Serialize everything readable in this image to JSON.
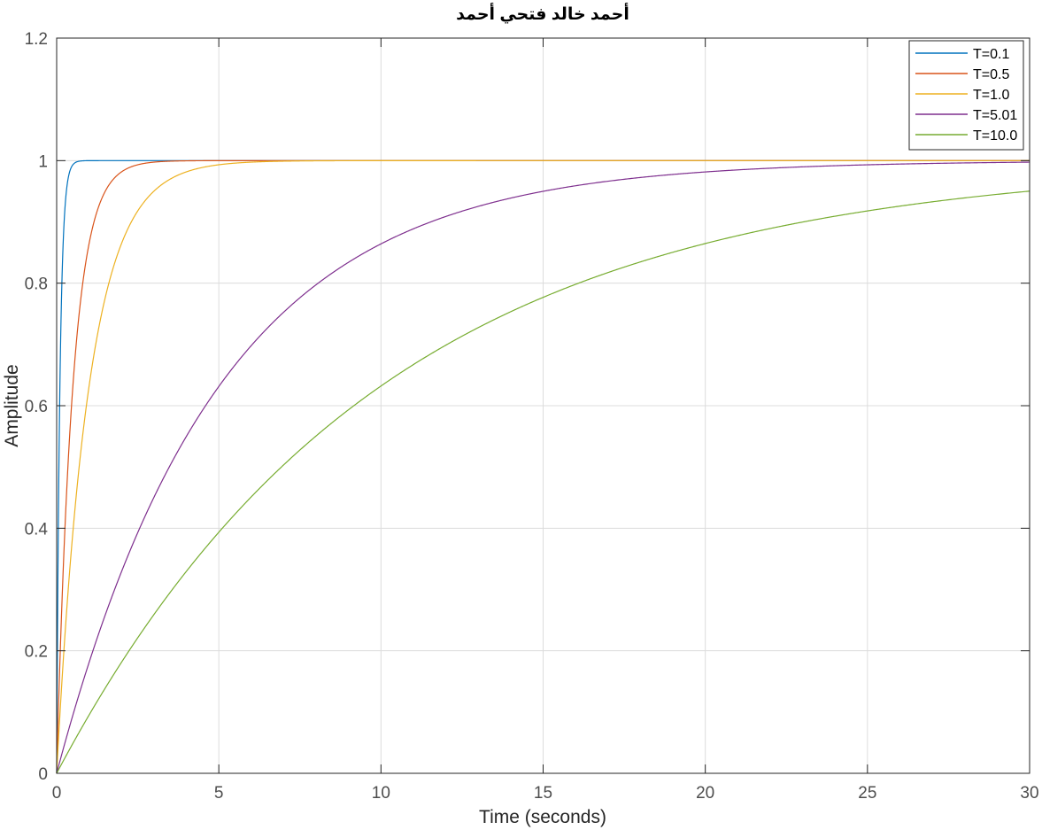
{
  "chart_data": {
    "type": "line",
    "title": "أحمد خالد فتحي أحمد",
    "xlabel": "Time (seconds)",
    "ylabel": "Amplitude",
    "xlim": [
      0,
      30
    ],
    "ylim": [
      0,
      1.2
    ],
    "xticks": [
      0,
      5,
      10,
      15,
      20,
      25,
      30
    ],
    "xtick_labels": [
      "0",
      "5",
      "10",
      "15",
      "20",
      "25",
      "30"
    ],
    "yticks": [
      0,
      0.2,
      0.4,
      0.6,
      0.8,
      1,
      1.2
    ],
    "ytick_labels": [
      "0",
      "0.2",
      "0.4",
      "0.6",
      "0.8",
      "1",
      "1.2"
    ],
    "grid": true,
    "legend_position": "top-right",
    "model": "first-order step response y = 1 - exp(-t/T)",
    "series": [
      {
        "name": "T=0.1",
        "T": 0.1,
        "color": "#0072BD"
      },
      {
        "name": "T=0.5",
        "T": 0.5,
        "color": "#D95319"
      },
      {
        "name": "T=1.0",
        "T": 1.0,
        "color": "#EDB120"
      },
      {
        "name": "T=5.01",
        "T": 5.01,
        "color": "#7E2F8E"
      },
      {
        "name": "T=10.0",
        "T": 10.0,
        "color": "#77AC30"
      }
    ]
  }
}
